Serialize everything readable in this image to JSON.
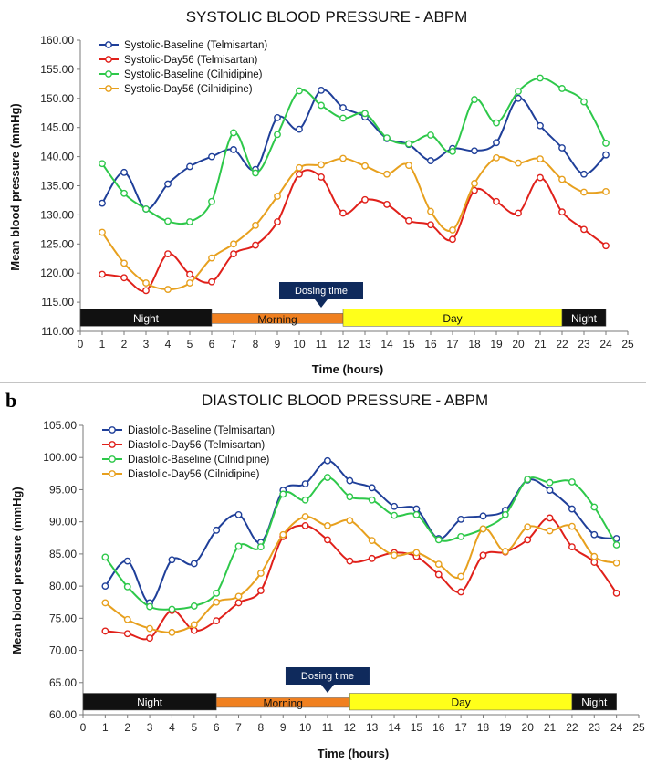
{
  "colors": {
    "telmisartan_baseline": "#1f3f99",
    "telmisartan_day56": "#e0201a",
    "cilnidipine_baseline": "#2ec84a",
    "cilnidipine_day56": "#e7a01e",
    "night": "#111111",
    "morning": "#f08020",
    "day": "#ffff1a",
    "dose_box": "#0f2a5c"
  },
  "chart_data": [
    {
      "type": "line",
      "title": "SYSTOLIC BLOOD PRESSURE - ABPM",
      "xlabel": "Time (hours)",
      "ylabel": "Mean blood pressure (mmHg)",
      "x_ticks": [
        "0",
        "1",
        "2",
        "3",
        "4",
        "5",
        "6",
        "7",
        "8",
        "9",
        "10",
        "11",
        "12",
        "13",
        "14",
        "15",
        "16",
        "17",
        "18",
        "19",
        "20",
        "21",
        "22",
        "23",
        "24",
        "25"
      ],
      "y_ticks": [
        "110.00",
        "115.00",
        "120.00",
        "125.00",
        "130.00",
        "135.00",
        "140.00",
        "145.00",
        "150.00",
        "155.00",
        "160.00"
      ],
      "xlim": [
        0,
        25
      ],
      "ylim": [
        110,
        160
      ],
      "x": [
        1,
        2,
        3,
        4,
        5,
        6,
        7,
        8,
        9,
        10,
        11,
        12,
        13,
        14,
        15,
        16,
        17,
        18,
        19,
        20,
        21,
        22,
        23,
        24
      ],
      "series": [
        {
          "name": "Systolic-Baseline (Telmisartan)",
          "color_key": "telmisartan_baseline",
          "values": [
            132.0,
            137.3,
            131.0,
            135.3,
            138.3,
            140.0,
            141.2,
            137.8,
            146.7,
            144.7,
            151.4,
            148.4,
            146.8,
            143.1,
            142.1,
            139.3,
            141.4,
            141.0,
            142.4,
            150.0,
            145.3,
            141.5,
            137.0,
            140.3
          ]
        },
        {
          "name": "Systolic-Day56 (Telmisartan)",
          "color_key": "telmisartan_day56",
          "values": [
            119.8,
            119.2,
            117.0,
            123.3,
            119.8,
            118.5,
            123.3,
            124.8,
            128.8,
            137.0,
            136.5,
            130.3,
            132.6,
            131.8,
            129.0,
            128.3,
            125.8,
            134.2,
            132.3,
            130.3,
            136.4,
            130.5,
            127.5,
            124.7
          ]
        },
        {
          "name": "Systolic-Baseline (Cilnidipine)",
          "color_key": "cilnidipine_baseline",
          "values": [
            138.8,
            133.7,
            131.0,
            128.9,
            128.8,
            132.3,
            144.1,
            137.2,
            143.8,
            151.3,
            148.8,
            146.6,
            147.4,
            143.2,
            142.2,
            143.7,
            140.9,
            149.8,
            145.8,
            151.2,
            153.5,
            151.7,
            149.4,
            142.3
          ]
        },
        {
          "name": "Systolic-Day56 (Cilnidipine)",
          "color_key": "cilnidipine_day56",
          "values": [
            127.0,
            121.7,
            118.3,
            117.2,
            118.3,
            122.6,
            125.0,
            128.2,
            133.2,
            138.1,
            138.6,
            139.7,
            138.4,
            137.0,
            138.5,
            130.6,
            127.4,
            135.4,
            139.8,
            138.9,
            139.6,
            136.1,
            133.9,
            134.0
          ]
        }
      ],
      "legend_position": "top-left",
      "bands": [
        {
          "label": "Night",
          "from": 0,
          "to": 6,
          "color_key": "night",
          "text_color": "#ffffff"
        },
        {
          "label": "Morning",
          "from": 6,
          "to": 12,
          "color_key": "morning",
          "text_color": "#111111"
        },
        {
          "label": "Day",
          "from": 12,
          "to": 22,
          "color_key": "day",
          "text_color": "#111111"
        },
        {
          "label": "Night",
          "from": 22,
          "to": 24,
          "color_key": "night",
          "text_color": "#ffffff"
        }
      ],
      "dosing_label": "Dosing time",
      "dosing_hour": 11,
      "band_value_range": [
        111.2,
        112.6
      ]
    },
    {
      "type": "line",
      "panel_label": "b",
      "title": "DIASTOLIC BLOOD PRESSURE - ABPM",
      "xlabel": "Time (hours)",
      "ylabel": "Mean blood pressure (mmHg)",
      "x_ticks": [
        "0",
        "1",
        "2",
        "3",
        "4",
        "5",
        "6",
        "7",
        "8",
        "9",
        "10",
        "11",
        "12",
        "13",
        "14",
        "15",
        "16",
        "17",
        "18",
        "19",
        "20",
        "21",
        "22",
        "23",
        "24",
        "25"
      ],
      "y_ticks": [
        "60.00",
        "65.00",
        "70.00",
        "75.00",
        "80.00",
        "85.00",
        "90.00",
        "95.00",
        "100.00",
        "105.00"
      ],
      "xlim": [
        0,
        25
      ],
      "ylim": [
        60,
        105
      ],
      "x": [
        1,
        2,
        3,
        4,
        5,
        6,
        7,
        8,
        9,
        10,
        11,
        12,
        13,
        14,
        15,
        16,
        17,
        18,
        19,
        20,
        21,
        22,
        23,
        24
      ],
      "series": [
        {
          "name": "Diastolic-Baseline (Telmisartan)",
          "color_key": "telmisartan_baseline",
          "values": [
            80.0,
            83.9,
            77.4,
            84.1,
            83.5,
            88.7,
            91.1,
            86.8,
            94.9,
            95.9,
            99.5,
            96.4,
            95.3,
            92.4,
            92.0,
            87.4,
            90.4,
            90.9,
            91.8,
            96.5,
            94.9,
            92.0,
            88.0,
            87.4
          ]
        },
        {
          "name": "Diastolic-Day56 (Telmisartan)",
          "color_key": "telmisartan_day56",
          "values": [
            73.0,
            72.6,
            71.9,
            76.2,
            73.1,
            74.6,
            77.4,
            79.3,
            87.7,
            89.4,
            87.2,
            83.9,
            84.3,
            85.2,
            84.6,
            81.8,
            79.1,
            84.8,
            85.3,
            87.2,
            90.6,
            86.1,
            83.7,
            78.9
          ]
        },
        {
          "name": "Diastolic-Baseline (Cilnidipine)",
          "color_key": "cilnidipine_baseline",
          "values": [
            84.5,
            79.9,
            76.8,
            76.4,
            76.9,
            78.9,
            86.2,
            86.1,
            94.3,
            93.4,
            96.9,
            93.9,
            93.4,
            91.0,
            91.1,
            87.2,
            87.7,
            88.9,
            91.1,
            96.6,
            96.1,
            96.2,
            92.3,
            86.4
          ]
        },
        {
          "name": "Diastolic-Day56 (Cilnidipine)",
          "color_key": "cilnidipine_day56",
          "values": [
            77.4,
            74.8,
            73.4,
            72.8,
            74.0,
            77.5,
            78.4,
            82.0,
            88.0,
            90.8,
            89.4,
            90.2,
            87.1,
            84.8,
            85.2,
            83.4,
            81.5,
            88.9,
            85.4,
            89.2,
            88.6,
            89.3,
            84.6,
            83.6
          ]
        }
      ],
      "legend_position": "top-left",
      "bands": [
        {
          "label": "Night",
          "from": 0,
          "to": 6,
          "color_key": "night",
          "text_color": "#ffffff"
        },
        {
          "label": "Morning",
          "from": 6,
          "to": 12,
          "color_key": "morning",
          "text_color": "#111111"
        },
        {
          "label": "Day",
          "from": 12,
          "to": 22,
          "color_key": "day",
          "text_color": "#111111"
        },
        {
          "label": "Night",
          "from": 22,
          "to": 24,
          "color_key": "night",
          "text_color": "#ffffff"
        }
      ],
      "dosing_label": "Dosing time",
      "dosing_hour": 11,
      "band_value_range": [
        61.0,
        62.2
      ]
    }
  ]
}
